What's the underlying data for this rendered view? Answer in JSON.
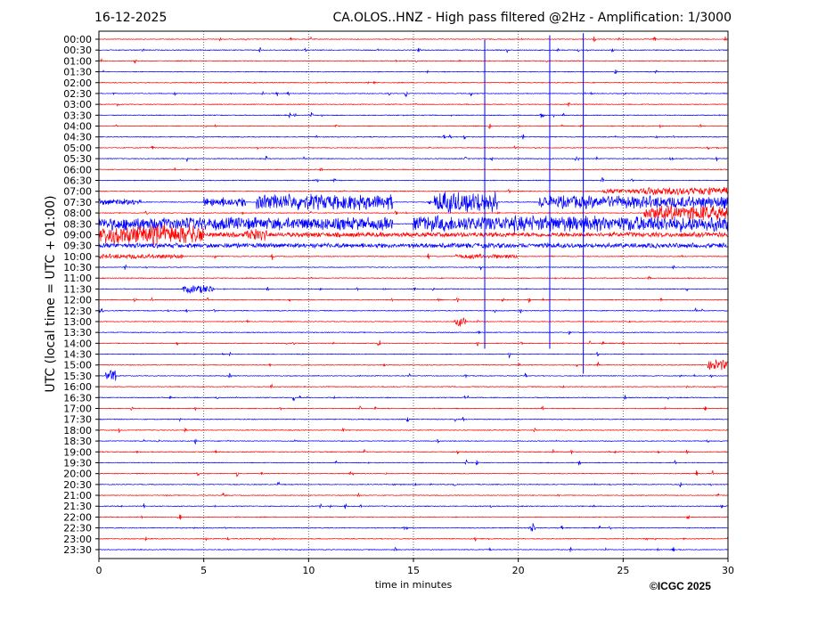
{
  "chart_data": {
    "type": "line",
    "subtype": "helicorder",
    "title_left": "16-12-2025",
    "title": "CA.OLOS..HNZ - High pass filtered @2Hz - Amplification: 1/3000",
    "xlabel": "time in minutes",
    "ylabel": "UTC (local time = UTC + 01:00)",
    "xlim": [
      0,
      30
    ],
    "xticks": [
      "0",
      "5",
      "10",
      "15",
      "20",
      "25",
      "30"
    ],
    "grid": "vertical dotted",
    "colors": [
      "#ff0000",
      "#0000ff"
    ],
    "rows": [
      "00:00",
      "00:30",
      "01:00",
      "01:30",
      "02:00",
      "02:30",
      "03:00",
      "03:30",
      "04:00",
      "04:30",
      "05:00",
      "05:30",
      "06:00",
      "06:30",
      "07:00",
      "07:30",
      "08:00",
      "08:30",
      "09:00",
      "09:30",
      "10:00",
      "10:30",
      "11:00",
      "11:30",
      "12:00",
      "12:30",
      "13:00",
      "13:30",
      "14:00",
      "14:30",
      "15:00",
      "15:30",
      "16:00",
      "16:30",
      "17:00",
      "17:30",
      "18:00",
      "18:30",
      "19:00",
      "19:30",
      "20:00",
      "20:30",
      "21:00",
      "21:30",
      "22:00",
      "22:30",
      "23:00",
      "23:30"
    ],
    "bursts": [
      {
        "row": "07:00",
        "start": 24,
        "end": 30,
        "amp": 3
      },
      {
        "row": "07:00",
        "start": 26,
        "end": 30,
        "amp": 5
      },
      {
        "row": "07:30",
        "start": 0,
        "end": 2,
        "amp": 4
      },
      {
        "row": "07:30",
        "start": 5,
        "end": 7,
        "amp": 6
      },
      {
        "row": "07:30",
        "start": 7.5,
        "end": 14,
        "amp": 10
      },
      {
        "row": "07:30",
        "start": 16,
        "end": 19,
        "amp": 14
      },
      {
        "row": "07:30",
        "start": 21,
        "end": 30,
        "amp": 8
      },
      {
        "row": "08:00",
        "start": 26,
        "end": 30,
        "amp": 10
      },
      {
        "row": "08:30",
        "start": 0,
        "end": 14,
        "amp": 8
      },
      {
        "row": "08:30",
        "start": 15,
        "end": 30,
        "amp": 10
      },
      {
        "row": "09:00",
        "start": 0,
        "end": 5,
        "amp": 12
      },
      {
        "row": "09:00",
        "start": 7,
        "end": 8,
        "amp": 8
      },
      {
        "row": "09:00",
        "start": 5,
        "end": 30,
        "amp": 3
      },
      {
        "row": "09:30",
        "start": 0,
        "end": 30,
        "amp": 3
      },
      {
        "row": "10:00",
        "start": 0,
        "end": 4,
        "amp": 3
      },
      {
        "row": "10:00",
        "start": 17,
        "end": 20,
        "amp": 3
      },
      {
        "row": "11:30",
        "start": 4,
        "end": 5.5,
        "amp": 5
      },
      {
        "row": "13:00",
        "start": 17,
        "end": 17.5,
        "amp": 6
      },
      {
        "row": "15:00",
        "start": 29,
        "end": 30,
        "amp": 7
      },
      {
        "row": "15:30",
        "start": 0.3,
        "end": 0.8,
        "amp": 7
      },
      {
        "row": "22:30",
        "start": 20.5,
        "end": 20.8,
        "amp": 6
      }
    ],
    "spikes": [
      {
        "minute": 18.4,
        "from_row": 0.7,
        "to_row": 28.5
      },
      {
        "minute": 21.5,
        "from_row": 0.3,
        "to_row": 28.5
      },
      {
        "minute": 23.1,
        "from_row": 0.1,
        "to_row": 30.8
      }
    ]
  },
  "footer": {
    "copyright": "©ICGC 2025"
  }
}
